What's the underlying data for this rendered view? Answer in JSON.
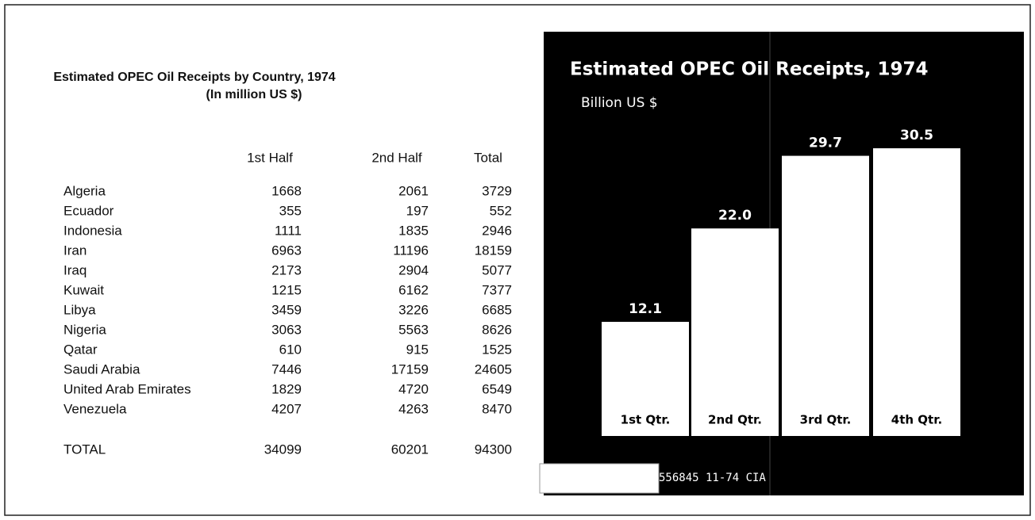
{
  "table": {
    "title": "Estimated OPEC Oil Receipts by Country, 1974",
    "subtitle": "(In million US $)",
    "columns": [
      "1st Half",
      "2nd Half",
      "Total"
    ],
    "rows": [
      [
        "Algeria",
        "1668",
        "2061",
        "3729"
      ],
      [
        "Ecuador",
        "355",
        "197",
        "552"
      ],
      [
        "Indonesia",
        "1111",
        "1835",
        "2946"
      ],
      [
        "Iran",
        "6963",
        "11196",
        "18159"
      ],
      [
        "Iraq",
        "2173",
        "2904",
        "5077"
      ],
      [
        "Kuwait",
        "1215",
        "6162",
        "7377"
      ],
      [
        "Libya",
        "3459",
        "3226",
        "6685"
      ],
      [
        "Nigeria",
        "3063",
        "5563",
        "8626"
      ],
      [
        "Qatar",
        "610",
        "915",
        "1525"
      ],
      [
        "Saudi Arabia",
        "7446",
        "17159",
        "24605"
      ],
      [
        "United Arab Emirates",
        "1829",
        "4720",
        "6549"
      ],
      [
        "Venezuela",
        "4207",
        "4263",
        "8470"
      ]
    ],
    "total": [
      "TOTAL",
      "34099",
      "60201",
      "94300"
    ]
  },
  "chart_data": {
    "type": "bar",
    "title": "Estimated OPEC Oil Receipts, 1974",
    "subtitle": "Billion US $",
    "categories": [
      "1st Qtr.",
      "2nd Qtr.",
      "3rd Qtr.",
      "4th Qtr."
    ],
    "values": [
      12.1,
      22.0,
      29.7,
      30.5
    ],
    "value_labels": [
      "12.1",
      "22.0",
      "29.7",
      "30.5"
    ],
    "color": "#ffffff",
    "footer": "556845 11-74 CIA"
  }
}
